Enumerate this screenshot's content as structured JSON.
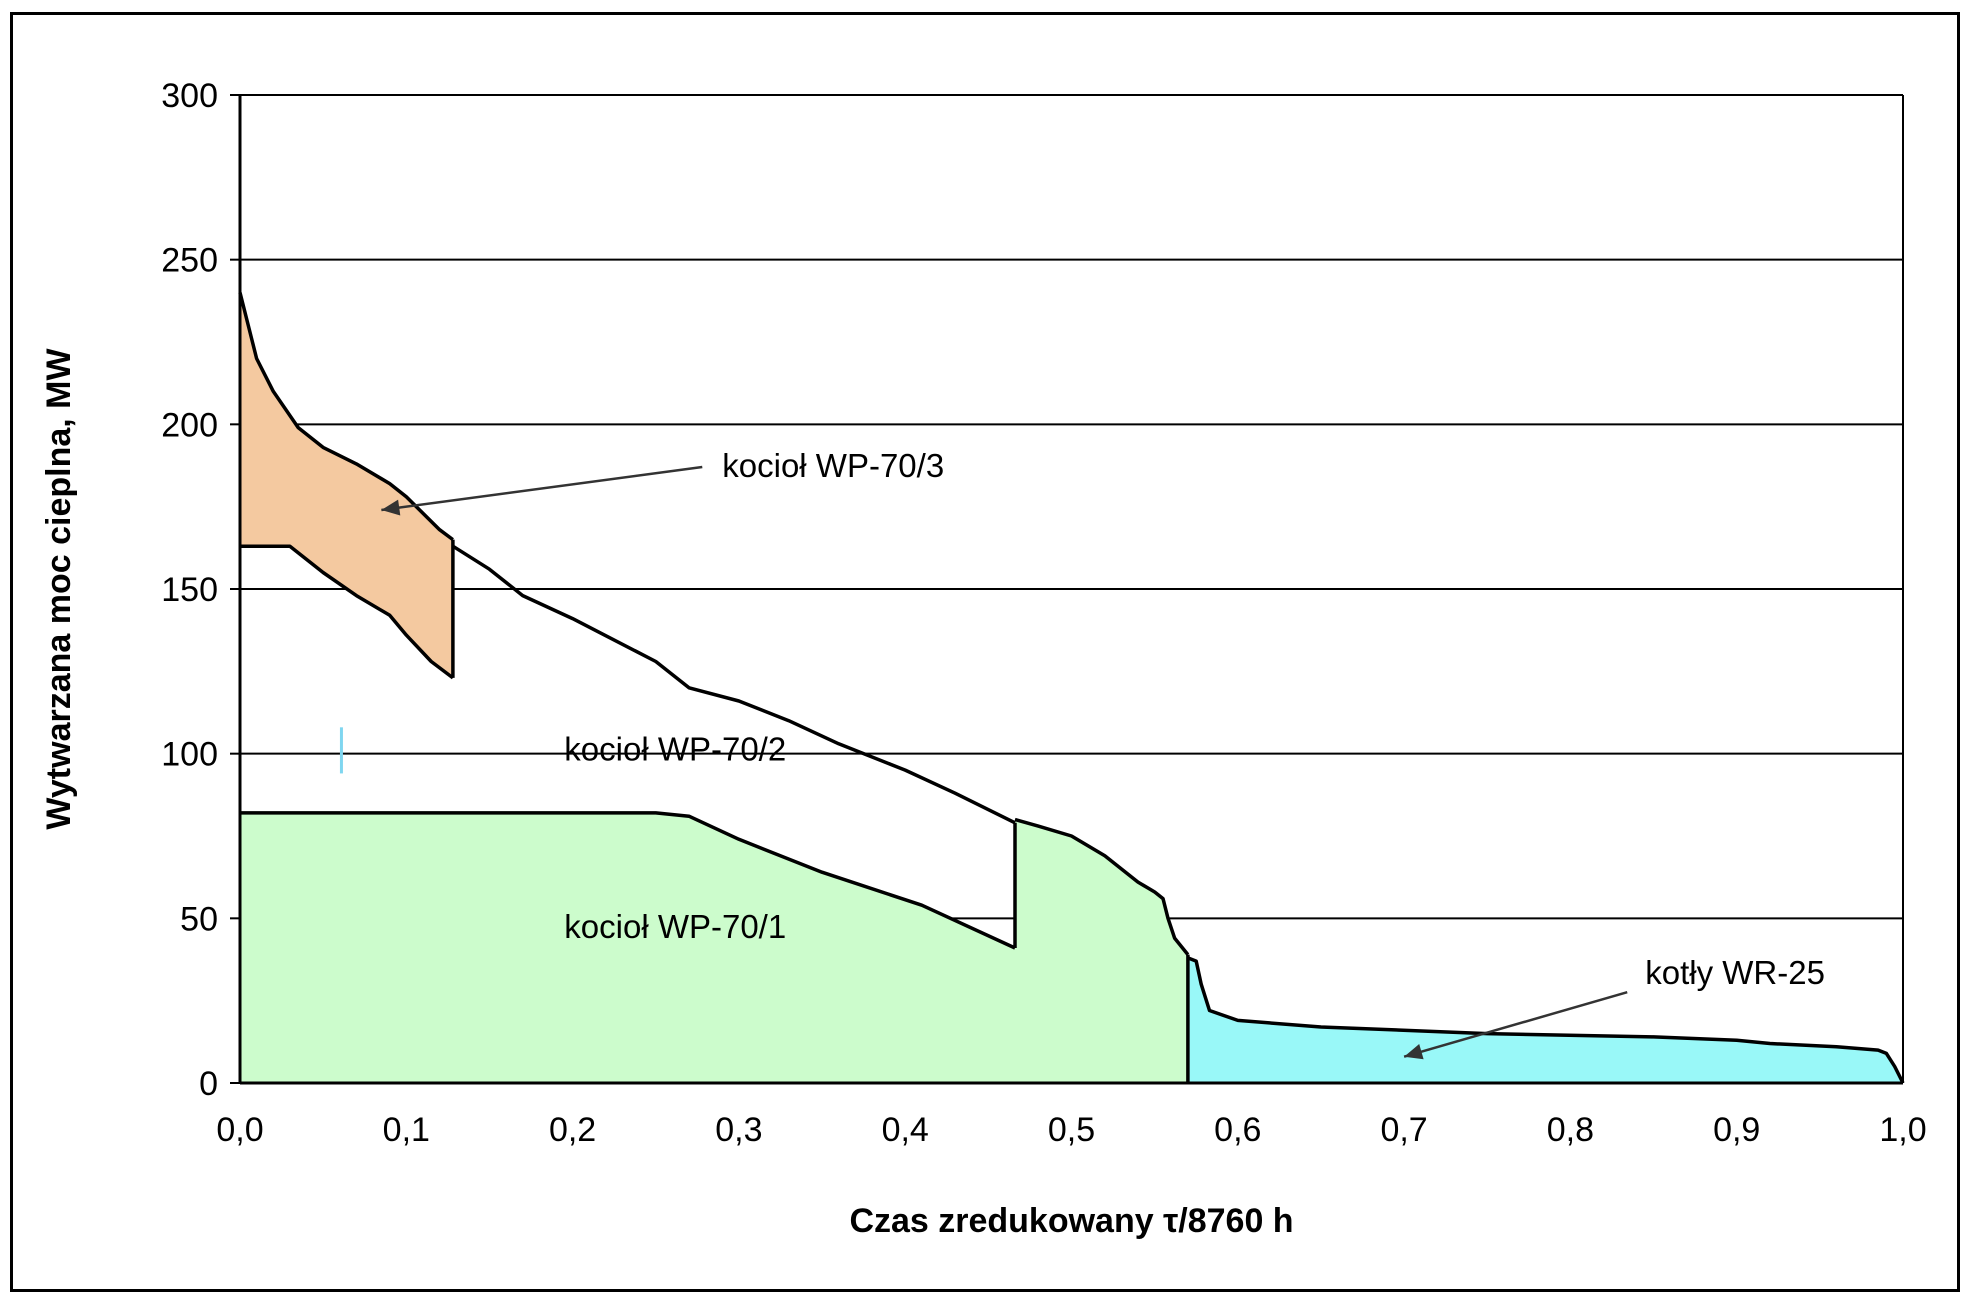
{
  "chart_data": {
    "type": "area",
    "xlabel": "Czas zredukowany τ/8760 h",
    "ylabel": "Wytwarzana moc cieplna, MW",
    "xlim": [
      0,
      1.0
    ],
    "ylim": [
      0,
      300
    ],
    "grid": "horizontal",
    "x_ticks": [
      "0,0",
      "0,1",
      "0,2",
      "0,3",
      "0,4",
      "0,5",
      "0,6",
      "0,7",
      "0,8",
      "0,9",
      "1,0"
    ],
    "y_ticks": [
      "0",
      "50",
      "100",
      "150",
      "200",
      "250",
      "300"
    ],
    "colors": {
      "wp70_3": "#f4c9a0",
      "wp70_1": "#ccfccc",
      "wr25": "#99f8f8",
      "outline": "#000000",
      "grid": "#000000"
    },
    "series": [
      {
        "name": "kocioł WP-70/3",
        "upper": [
          [
            0,
            240
          ],
          [
            0.005,
            230
          ],
          [
            0.01,
            220
          ],
          [
            0.02,
            210
          ],
          [
            0.035,
            199
          ],
          [
            0.05,
            193
          ],
          [
            0.07,
            188
          ],
          [
            0.09,
            182
          ],
          [
            0.1,
            178
          ],
          [
            0.12,
            168
          ],
          [
            0.128,
            165
          ]
        ],
        "lower": [
          [
            0,
            163
          ],
          [
            0.03,
            163
          ],
          [
            0.05,
            155
          ],
          [
            0.07,
            148
          ],
          [
            0.09,
            142
          ],
          [
            0.1,
            136
          ],
          [
            0.115,
            128
          ],
          [
            0.128,
            123
          ]
        ]
      },
      {
        "name": "kocioł WP-70/2",
        "upper": [
          [
            0.128,
            163
          ],
          [
            0.15,
            156
          ],
          [
            0.17,
            148
          ],
          [
            0.2,
            141
          ],
          [
            0.25,
            128
          ],
          [
            0.27,
            120
          ],
          [
            0.3,
            116
          ],
          [
            0.33,
            110
          ],
          [
            0.36,
            103
          ],
          [
            0.4,
            95
          ],
          [
            0.43,
            88
          ],
          [
            0.466,
            79
          ]
        ],
        "lower": [
          [
            0,
            82
          ],
          [
            0.25,
            82
          ],
          [
            0.27,
            81
          ],
          [
            0.3,
            74
          ],
          [
            0.35,
            64
          ],
          [
            0.41,
            54
          ],
          [
            0.466,
            41
          ]
        ]
      },
      {
        "name": "kocioł WP-70/1",
        "upper": [
          [
            0,
            82
          ],
          [
            0.25,
            82
          ],
          [
            0.27,
            81
          ],
          [
            0.3,
            74
          ],
          [
            0.35,
            64
          ],
          [
            0.41,
            54
          ],
          [
            0.466,
            41
          ],
          [
            0.466,
            80
          ],
          [
            0.48,
            78
          ],
          [
            0.5,
            75
          ],
          [
            0.52,
            69
          ],
          [
            0.54,
            61
          ],
          [
            0.55,
            58
          ],
          [
            0.555,
            56
          ],
          [
            0.558,
            50
          ],
          [
            0.562,
            44
          ],
          [
            0.57,
            39
          ]
        ],
        "lower": [
          [
            0,
            0
          ],
          [
            0.57,
            0
          ]
        ]
      },
      {
        "name": "kotły WR-25",
        "upper": [
          [
            0.57,
            38
          ],
          [
            0.575,
            37
          ],
          [
            0.578,
            30
          ],
          [
            0.583,
            22
          ],
          [
            0.6,
            19
          ],
          [
            0.65,
            17
          ],
          [
            0.75,
            15
          ],
          [
            0.85,
            14
          ],
          [
            0.9,
            13
          ],
          [
            0.92,
            12
          ],
          [
            0.96,
            11
          ],
          [
            0.985,
            10
          ],
          [
            0.99,
            9
          ],
          [
            0.995,
            5
          ],
          [
            1.0,
            0
          ]
        ],
        "lower": [
          [
            0.57,
            0
          ],
          [
            1.0,
            0
          ]
        ]
      }
    ],
    "annotations": [
      {
        "text": "kocioł WP-70/3",
        "x": 0.29,
        "y": 184,
        "arrow_to": [
          0.085,
          174
        ]
      },
      {
        "text": "kocioł WP-70/2",
        "x": 0.195,
        "y": 98
      },
      {
        "text": "kocioł WP-70/1",
        "x": 0.195,
        "y": 44
      },
      {
        "text": "kotły WR-25",
        "x": 0.845,
        "y": 30,
        "arrow_to": [
          0.7,
          8
        ]
      }
    ]
  }
}
